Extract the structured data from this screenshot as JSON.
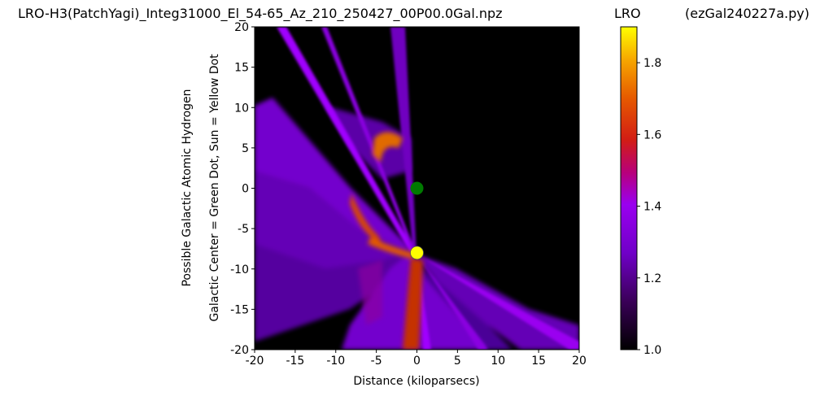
{
  "title_left": "LRO-H3(PatchYagi)_Integ31000_El_54-65_Az_210_250427_00P00.0Gal.npz",
  "title_mid": "LRO",
  "title_right": "(ezGal240227a.py)",
  "chart_data": {
    "type": "heatmap",
    "title": "LRO-H3(PatchYagi)_Integ31000_El_54-65_Az_210_250427_00P00.0Gal.npz",
    "xlabel": "Distance (kiloparsecs)",
    "ylabel_line1": "Possible Galactic Atomic Hydrogen",
    "ylabel_line2": "Galactic Center = Green Dot, Sun = Yellow Dot",
    "xlim": [
      -20,
      20
    ],
    "ylim": [
      -20,
      20
    ],
    "xticks": [
      "-20",
      "-15",
      "-10",
      "-5",
      "0",
      "5",
      "10",
      "15",
      "20"
    ],
    "yticks": [
      "20",
      "15",
      "10",
      "5",
      "0",
      "-5",
      "-10",
      "-15",
      "-20"
    ],
    "colormap": "gnuplot",
    "colorbar": {
      "label": "LRO",
      "range": [
        1.0,
        1.9
      ],
      "ticks": [
        "1.8",
        "1.6",
        "1.4",
        "1.2",
        "1.0"
      ],
      "tick_values": [
        1.8,
        1.6,
        1.4,
        1.2,
        1.0
      ]
    },
    "markers": [
      {
        "name": "Galactic Center",
        "x": 0,
        "y": 0,
        "color": "#007a00"
      },
      {
        "name": "Sun",
        "x": 0,
        "y": -8,
        "color": "#ffff00"
      }
    ],
    "background_color": "#000000"
  }
}
